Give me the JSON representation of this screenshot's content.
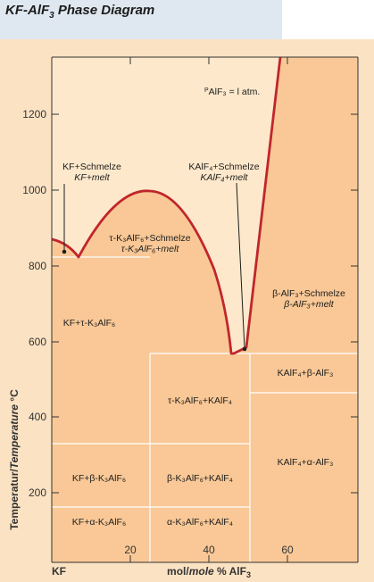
{
  "title": {
    "main": "KF-AlF",
    "sub": "3",
    "rest": " Phase Diagram"
  },
  "axes": {
    "y_ticks": [
      "1200",
      "1000",
      "800",
      "600",
      "400",
      "200"
    ],
    "x_ticks": [
      "20",
      "40",
      "60"
    ],
    "x_left_label": "KF",
    "xlabel_a": "mol/",
    "xlabel_b": "mole",
    "xlabel_c": " % AlF",
    "xlabel_sub": "3",
    "ylabel_a": "Temperatur/",
    "ylabel_b": "Temperature",
    "ylabel_c": " °C"
  },
  "labels": {
    "pressure_p": "P",
    "pressure_sub": "AlF₃",
    "pressure_rest": " = l atm.",
    "kf_schmelze": "KF+Schmelze",
    "kf_melt": "KF+melt",
    "kalf4_schmelze": "KAlF₄+Schmelze",
    "kalf4_melt": "KAlF₄+melt",
    "tau_k3alf6_schmelze": "τ-K₃AlF₆+Schmelze",
    "tau_k3alf6_melt": "τ-K₃AlF₆+melt",
    "beta_alf3_schmelze": "β-AlF₃+Schmelze",
    "beta_alf3_melt": "β-AlF₃+melt",
    "kf_tau_k3alf6": "KF+τ-K₃AlF₆",
    "kalf4_beta_alf3": "KAlF₄+β-AlF₃",
    "tau_k3alf6_kalf4": "τ-K₃AlF₆+KAlF₄",
    "kalf4_alpha_alf3": "KAlF₄+α-AlF₃",
    "kf_beta_k3alf6": "KF+β-K₃AlF₆",
    "beta_k3alf6_kalf4": "β-K₃AlF₆+KAlF₄",
    "kf_alpha_k3alf6": "KF+α-K₃AlF₆",
    "alpha_k3alf6_kalf4": "α-K₃AlF₆+KAlF₄"
  },
  "colors": {
    "liquid_region": "#fde8cb",
    "solid_region": "#f9c896",
    "liquidus_curve": "#c0262b",
    "header_bar": "#dfe7f0"
  }
}
